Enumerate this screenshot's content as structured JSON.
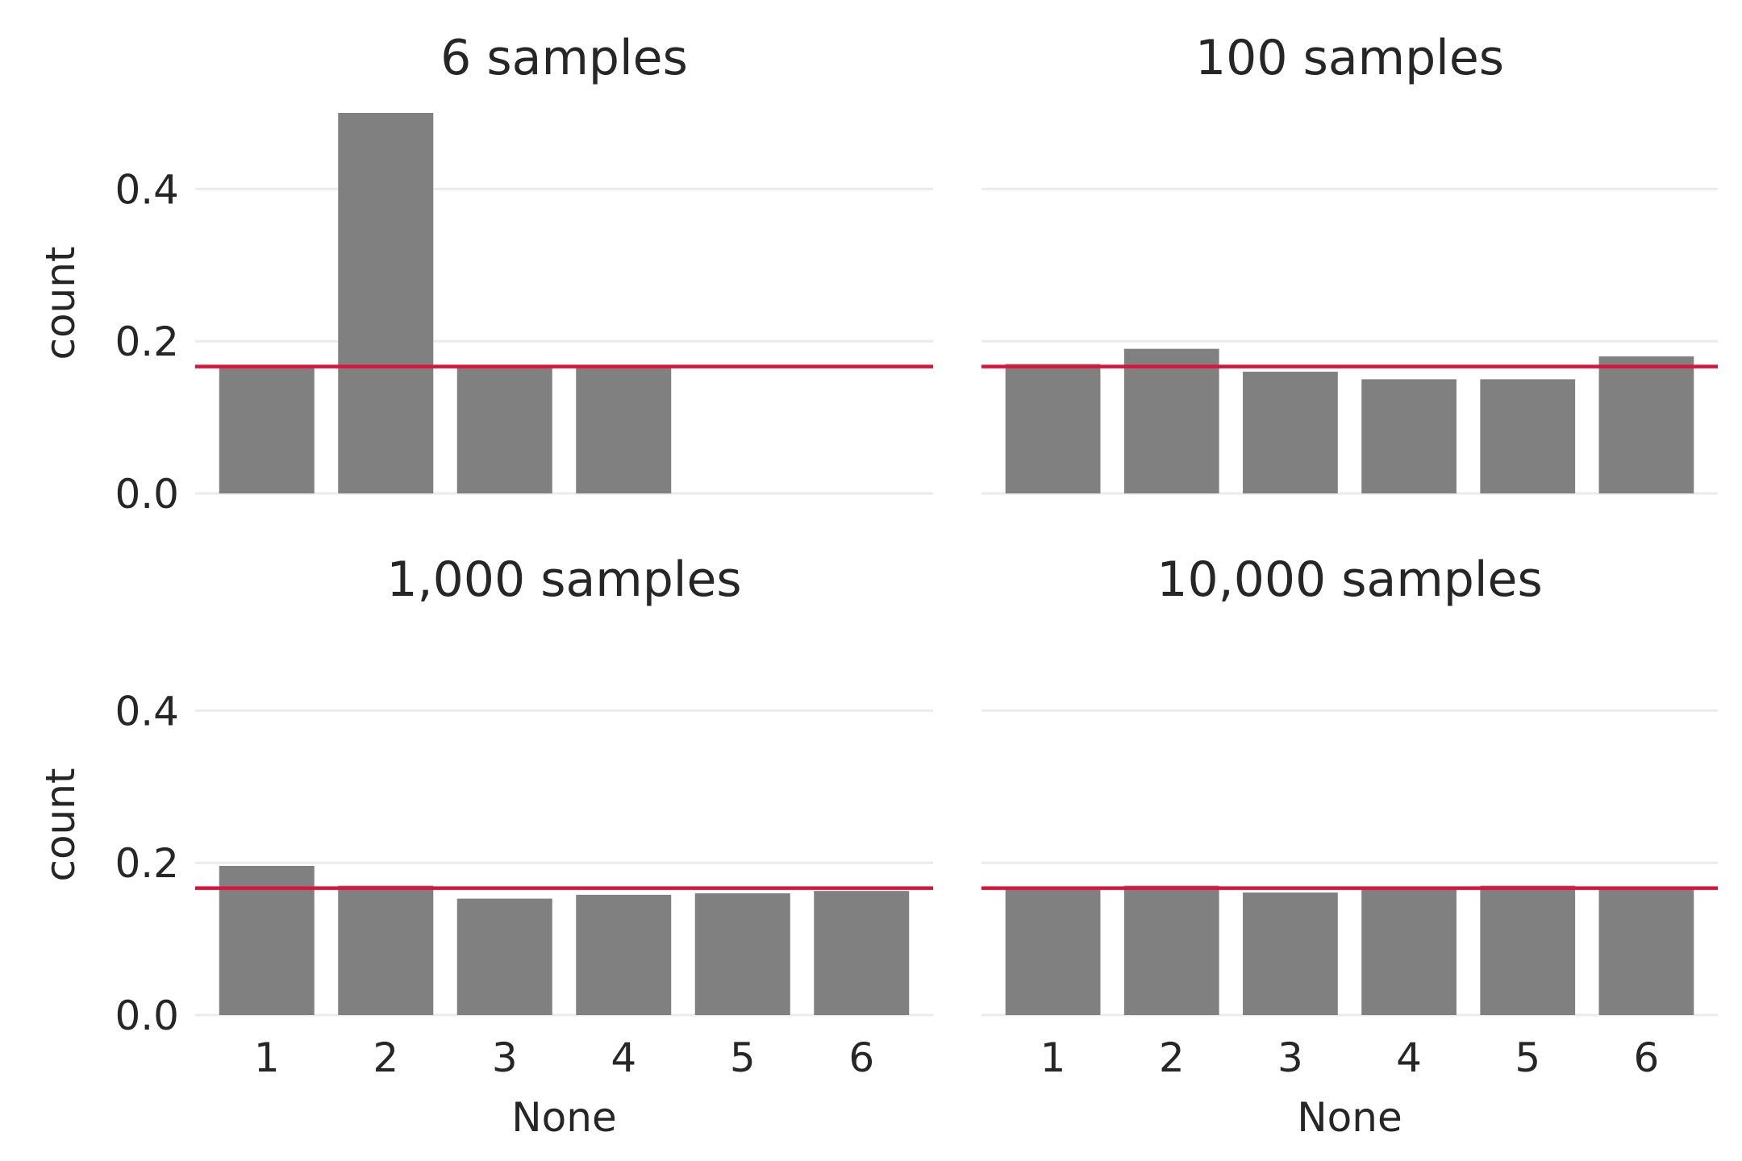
{
  "chart_data": [
    {
      "type": "bar",
      "title": "6 samples",
      "categories": [
        "1",
        "2",
        "3",
        "4",
        "5",
        "6"
      ],
      "values": [
        0.1667,
        0.5,
        0.1667,
        0.1667,
        0,
        0
      ],
      "xlabel": "",
      "ylabel": "count",
      "ylim": [
        0,
        0.5
      ],
      "yticks": [
        "0.0",
        "0.2",
        "0.4"
      ],
      "reference_line": 0.1667,
      "bar_color": "#808080",
      "line_color": "#dc143c",
      "grid": true
    },
    {
      "type": "bar",
      "title": "100 samples",
      "categories": [
        "1",
        "2",
        "3",
        "4",
        "5",
        "6"
      ],
      "values": [
        0.17,
        0.19,
        0.16,
        0.15,
        0.15,
        0.18
      ],
      "xlabel": "",
      "ylabel": "",
      "ylim": [
        0,
        0.5
      ],
      "yticks": [],
      "reference_line": 0.1667,
      "bar_color": "#808080",
      "line_color": "#dc143c",
      "grid": true
    },
    {
      "type": "bar",
      "title": "1,000 samples",
      "categories": [
        "1",
        "2",
        "3",
        "4",
        "5",
        "6"
      ],
      "values": [
        0.196,
        0.17,
        0.153,
        0.158,
        0.16,
        0.163
      ],
      "xlabel": "None",
      "ylabel": "count",
      "ylim": [
        0,
        0.5
      ],
      "yticks": [
        "0.0",
        "0.2",
        "0.4"
      ],
      "reference_line": 0.1667,
      "bar_color": "#808080",
      "line_color": "#dc143c",
      "grid": true
    },
    {
      "type": "bar",
      "title": "10,000 samples",
      "categories": [
        "1",
        "2",
        "3",
        "4",
        "5",
        "6"
      ],
      "values": [
        0.165,
        0.17,
        0.161,
        0.167,
        0.17,
        0.167
      ],
      "xlabel": "None",
      "ylabel": "",
      "ylim": [
        0,
        0.5
      ],
      "yticks": [],
      "reference_line": 0.1667,
      "bar_color": "#808080",
      "line_color": "#dc143c",
      "grid": true
    }
  ]
}
